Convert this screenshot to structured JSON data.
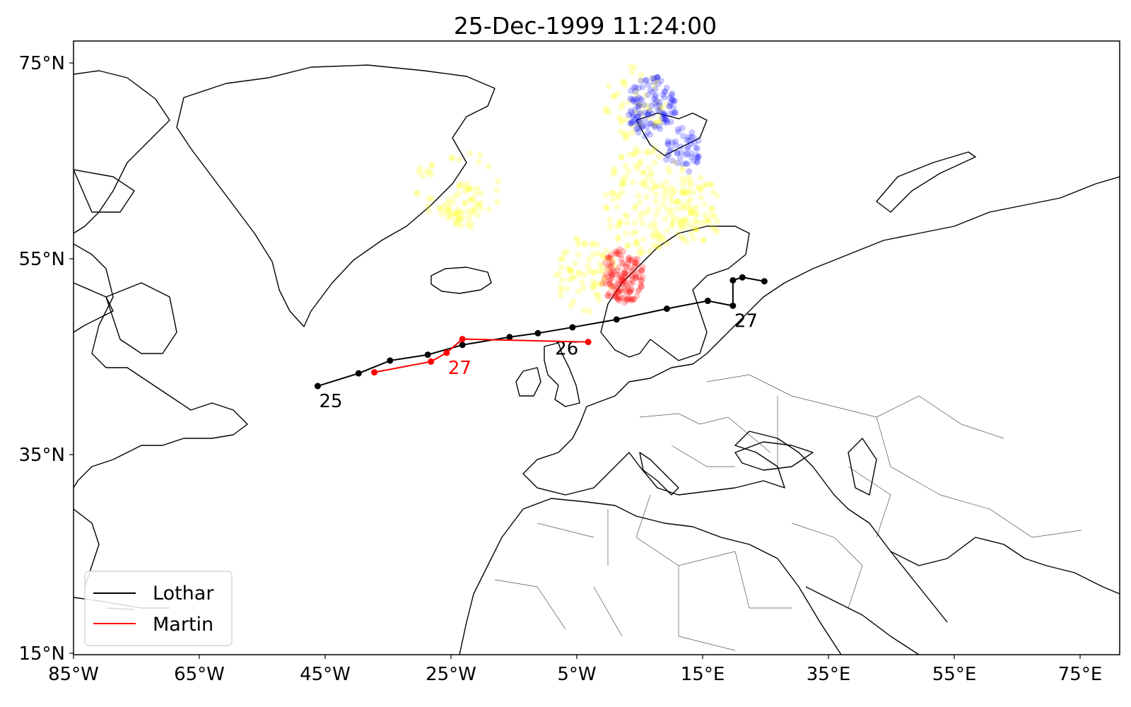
{
  "title": "25-Dec-1999 11:24:00",
  "colors": {
    "lothar": "#000000",
    "martin": "#ff0000",
    "points_low": "#ffff00",
    "points_high": "#ff0000",
    "points_north": "#0000ff",
    "coastline": "#000000",
    "borders": "#555555"
  },
  "chart_data": {
    "type": "map",
    "projection": "plate-carree",
    "lon_range": [
      -85,
      100
    ],
    "lat_range": [
      15,
      77
    ],
    "xticks": [
      {
        "value": -85,
        "label": "85°W"
      },
      {
        "value": -65,
        "label": "65°W"
      },
      {
        "value": -45,
        "label": "45°W"
      },
      {
        "value": -25,
        "label": "25°W"
      },
      {
        "value": -5,
        "label": "5°W"
      },
      {
        "value": 15,
        "label": "15°E"
      },
      {
        "value": 35,
        "label": "35°E"
      },
      {
        "value": 55,
        "label": "55°E"
      },
      {
        "value": 75,
        "label": "75°E"
      }
    ],
    "yticks": [
      {
        "value": 15,
        "label": "15°N"
      },
      {
        "value": 35,
        "label": "35°N"
      },
      {
        "value": 55,
        "label": "55°N"
      },
      {
        "value": 75,
        "label": "75°N"
      }
    ],
    "legend_position": "bottom-left",
    "tracks": [
      {
        "name": "Lothar",
        "color": "#000000",
        "points": [
          [
            -44.5,
            42.0
          ],
          [
            -38.0,
            43.3
          ],
          [
            -33.0,
            44.6
          ],
          [
            -27.0,
            45.2
          ],
          [
            -21.5,
            46.2
          ],
          [
            -14.0,
            47.0
          ],
          [
            -9.5,
            47.4
          ],
          [
            -4.0,
            48.0
          ],
          [
            3.0,
            48.8
          ],
          [
            11.0,
            49.9
          ],
          [
            17.5,
            50.7
          ],
          [
            21.5,
            50.2
          ],
          [
            21.5,
            52.8
          ],
          [
            23.0,
            53.1
          ],
          [
            26.5,
            52.7
          ]
        ],
        "labels": [
          {
            "text": "25",
            "lon": -44.5,
            "lat": 42.0
          },
          {
            "text": "26",
            "lon": -7.0,
            "lat": 47.4
          },
          {
            "text": "27",
            "lon": 21.5,
            "lat": 50.2
          }
        ]
      },
      {
        "name": "Martin",
        "color": "#ff0000",
        "points": [
          [
            -35.5,
            43.4
          ],
          [
            -26.5,
            44.5
          ],
          [
            -24.0,
            45.4
          ],
          [
            -21.5,
            46.8
          ],
          [
            -1.5,
            46.5
          ]
        ],
        "labels": [
          {
            "text": "27",
            "lon": -24.0,
            "lat": 45.4
          }
        ]
      }
    ],
    "point_clouds": [
      {
        "color": "#ffff00",
        "description": "yellow",
        "regions": [
          {
            "type": "ring",
            "lon": -22.0,
            "lat": 62.5,
            "r": 5.5,
            "count": 40
          },
          {
            "type": "blob",
            "lon": -21.0,
            "lat": 60.5,
            "r": 3.0,
            "count": 45
          },
          {
            "type": "blob",
            "lon": 8.0,
            "lat": 61.0,
            "r": 7.0,
            "count": 140
          },
          {
            "type": "blob",
            "lon": 15.5,
            "lat": 60.0,
            "r": 4.5,
            "count": 70
          },
          {
            "type": "blob",
            "lon": 6.0,
            "lat": 71.0,
            "r": 5.0,
            "count": 60
          },
          {
            "type": "blob",
            "lon": -2.0,
            "lat": 53.5,
            "r": 5.0,
            "count": 70
          }
        ]
      },
      {
        "color": "#0000ff",
        "description": "blue",
        "regions": [
          {
            "type": "blob",
            "lon": 8.5,
            "lat": 70.5,
            "r": 4.0,
            "count": 120
          },
          {
            "type": "blob",
            "lon": 13.5,
            "lat": 66.0,
            "r": 3.0,
            "count": 50
          }
        ]
      },
      {
        "color": "#ff0000",
        "description": "red",
        "regions": [
          {
            "type": "blob",
            "lon": 4.0,
            "lat": 53.2,
            "r": 3.5,
            "count": 150
          }
        ]
      }
    ]
  }
}
